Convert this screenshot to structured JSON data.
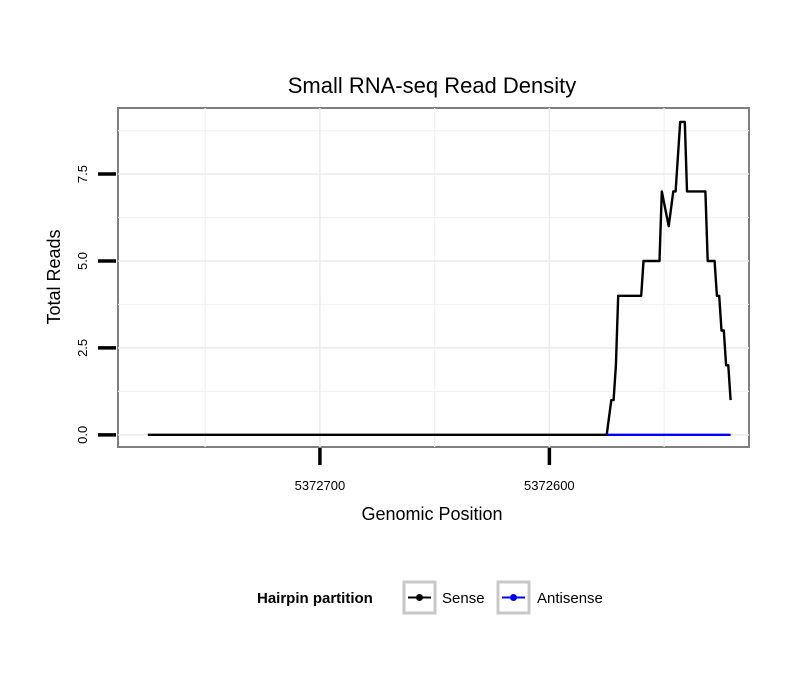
{
  "chart_data": {
    "type": "line",
    "title": "Small RNA-seq Read Density",
    "xlabel": "Genomic Position",
    "ylabel": "Total Reads",
    "x_reversed": true,
    "xlim": [
      5372788,
      5372513
    ],
    "ylim": [
      -0.35,
      9.4
    ],
    "xticks": [
      5372700,
      5372600
    ],
    "x_tick_labels": [
      "5372700",
      "5372600"
    ],
    "yticks": [
      0,
      2.5,
      5,
      7.5
    ],
    "y_tick_labels": [
      "0.0",
      "2.5",
      "5.0",
      "7.5"
    ],
    "grid": true,
    "legend": {
      "title": "Hairpin partition",
      "position": "bottom"
    },
    "series": [
      {
        "name": "Sense",
        "color": "#000000",
        "x": [
          5372775,
          5372575,
          5372573,
          5372572,
          5372571,
          5372570,
          5372560,
          5372559,
          5372552,
          5372551,
          5372548,
          5372546,
          5372545,
          5372543,
          5372541,
          5372540,
          5372532,
          5372531,
          5372528,
          5372527,
          5372526,
          5372525,
          5372524,
          5372523,
          5372522,
          5372521
        ],
        "y": [
          0,
          0,
          1,
          1,
          2,
          4,
          4,
          5,
          5,
          7,
          6,
          7,
          7,
          9,
          9,
          7,
          7,
          5,
          5,
          4,
          4,
          3,
          3,
          2,
          2,
          1
        ]
      },
      {
        "name": "Antisense",
        "color": "#0000ff",
        "x": [
          5372575,
          5372521
        ],
        "y": [
          0,
          0
        ]
      }
    ]
  }
}
